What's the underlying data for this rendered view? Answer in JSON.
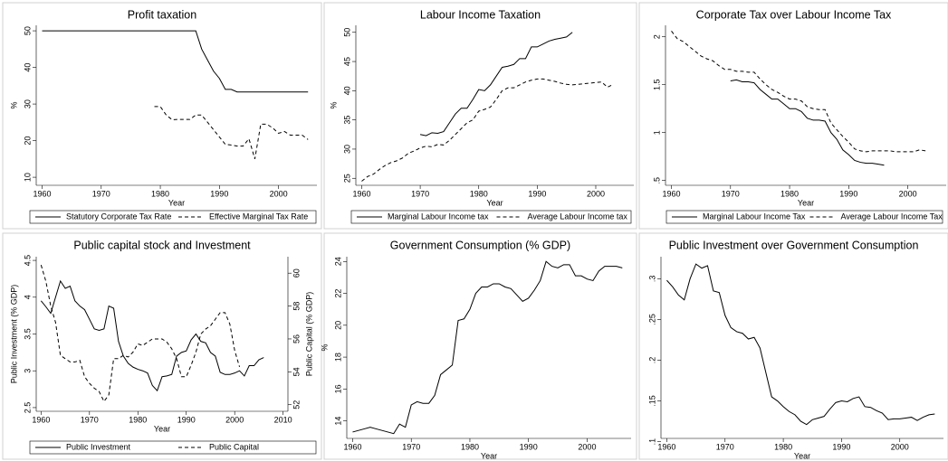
{
  "chart_data": [
    {
      "type": "line",
      "title": "Profit taxation",
      "xlabel": "Year",
      "ylabel": "%",
      "x": [
        1960,
        1961,
        1962,
        1963,
        1964,
        1965,
        1966,
        1967,
        1968,
        1969,
        1970,
        1971,
        1972,
        1973,
        1974,
        1975,
        1976,
        1977,
        1978,
        1979,
        1980,
        1981,
        1982,
        1983,
        1984,
        1985,
        1986,
        1987,
        1988,
        1989,
        1990,
        1991,
        1992,
        1993,
        1994,
        1995,
        1996,
        1997,
        1998,
        1999,
        2000,
        2001,
        2002,
        2003,
        2004,
        2005
      ],
      "series": [
        {
          "name": "Statutory Corporate Tax Rate",
          "color": "#000000",
          "line_style": "solid",
          "values": [
            50,
            50,
            50,
            50,
            50,
            50,
            50,
            50,
            50,
            50,
            50,
            50,
            50,
            50,
            50,
            50,
            50,
            50,
            50,
            50,
            50,
            50,
            50,
            50,
            50,
            50,
            50,
            45,
            42,
            39,
            37,
            34,
            34,
            33.3,
            33.3,
            33.3,
            33.3,
            33.3,
            33.3,
            33.3,
            33.3,
            33.3,
            33.3,
            33.3,
            33.3,
            33.3
          ]
        },
        {
          "name": "Effective Marginal Tax Rate",
          "color": "#000000",
          "line_style": "dashed",
          "values": [
            null,
            null,
            null,
            null,
            null,
            null,
            null,
            null,
            null,
            null,
            null,
            null,
            null,
            null,
            null,
            null,
            null,
            null,
            null,
            29.3,
            29.3,
            27,
            25.7,
            25.8,
            25.8,
            25.8,
            27,
            27,
            25,
            23,
            21,
            19,
            18.8,
            18.5,
            18.5,
            20.5,
            15,
            24.5,
            24.5,
            23.5,
            22,
            22.5,
            21.5,
            21.5,
            21.5,
            20.3
          ]
        }
      ],
      "xlim": [
        1959,
        2006.5
      ],
      "xticks": [
        1960,
        1970,
        1980,
        1990,
        2000
      ],
      "ylim": [
        7.8,
        51.5
      ],
      "yticks": [
        10,
        20,
        30,
        40,
        50
      ],
      "legend": "bottom"
    },
    {
      "type": "line",
      "title": "Labour Income Taxation",
      "xlabel": "Year",
      "ylabel": "%",
      "x": [
        1960,
        1961,
        1962,
        1963,
        1964,
        1965,
        1966,
        1967,
        1968,
        1969,
        1970,
        1971,
        1972,
        1973,
        1974,
        1975,
        1976,
        1977,
        1978,
        1979,
        1980,
        1981,
        1982,
        1983,
        1984,
        1985,
        1986,
        1987,
        1988,
        1989,
        1990,
        1991,
        1992,
        1993,
        1994,
        1995,
        1996,
        1997,
        1998,
        1999,
        2000,
        2001,
        2002,
        2003
      ],
      "series": [
        {
          "name": "Marginal Labour Income tax",
          "color": "#000000",
          "line_style": "solid",
          "values": [
            null,
            null,
            null,
            null,
            null,
            null,
            null,
            null,
            null,
            null,
            32.5,
            32.3,
            32.8,
            32.7,
            33,
            34.5,
            36,
            37,
            37,
            38.5,
            40.2,
            40,
            41,
            42.5,
            44,
            44.2,
            44.5,
            45.5,
            45.5,
            47.5,
            47.5,
            48,
            48.5,
            48.8,
            49,
            49.2,
            50,
            null,
            null,
            null,
            null,
            null,
            null,
            null
          ]
        },
        {
          "name": "Average Labour Income tax",
          "color": "#000000",
          "line_style": "dashed",
          "values": [
            24.5,
            25.3,
            25.7,
            26.5,
            27.2,
            27.7,
            28,
            28.5,
            29.3,
            29.7,
            30.2,
            30.5,
            30.4,
            30.8,
            30.7,
            31.5,
            32.5,
            33.5,
            34.5,
            35,
            36.5,
            36.8,
            37.2,
            38.5,
            40,
            40.5,
            40.5,
            41,
            41.5,
            41.8,
            42,
            42,
            41.8,
            41.6,
            41.3,
            41.1,
            41,
            41.1,
            41.2,
            41.3,
            41.4,
            41.5,
            40.6,
            41.1
          ]
        }
      ],
      "xlim": [
        1959,
        2006.5
      ],
      "xticks": [
        1960,
        1970,
        1980,
        1990,
        2000
      ],
      "ylim": [
        23.8,
        51.2
      ],
      "yticks": [
        25,
        30,
        35,
        40,
        45,
        50
      ],
      "legend": "bottom"
    },
    {
      "type": "line",
      "title": "Corporate Tax over Labour Income Tax",
      "xlabel": "Year",
      "x": [
        1960,
        1961,
        1962,
        1963,
        1964,
        1965,
        1966,
        1967,
        1968,
        1969,
        1970,
        1971,
        1972,
        1973,
        1974,
        1975,
        1976,
        1977,
        1978,
        1979,
        1980,
        1981,
        1982,
        1983,
        1984,
        1985,
        1986,
        1987,
        1988,
        1989,
        1990,
        1991,
        1992,
        1993,
        1994,
        1995,
        1996,
        1997,
        1998,
        1999,
        2000,
        2001,
        2002,
        2003
      ],
      "series": [
        {
          "name": "Marginal Labour Income Tax",
          "color": "#000000",
          "line_style": "solid",
          "values": [
            null,
            null,
            null,
            null,
            null,
            null,
            null,
            null,
            null,
            null,
            1.54,
            1.55,
            1.53,
            1.53,
            1.52,
            1.45,
            1.4,
            1.35,
            1.35,
            1.3,
            1.25,
            1.25,
            1.22,
            1.15,
            1.13,
            1.13,
            1.12,
            1.0,
            0.93,
            0.82,
            0.77,
            0.71,
            0.69,
            0.68,
            0.68,
            0.67,
            0.66,
            null,
            null,
            null,
            null,
            null,
            null,
            null
          ]
        },
        {
          "name": "Average Labour Income Tax",
          "color": "#000000",
          "line_style": "dashed",
          "values": [
            2.06,
            1.98,
            1.95,
            1.9,
            1.85,
            1.8,
            1.77,
            1.75,
            1.7,
            1.66,
            1.66,
            1.64,
            1.64,
            1.63,
            1.63,
            1.56,
            1.5,
            1.45,
            1.42,
            1.38,
            1.35,
            1.35,
            1.33,
            1.27,
            1.25,
            1.24,
            1.24,
            1.1,
            1.03,
            0.96,
            0.9,
            0.83,
            0.81,
            0.8,
            0.81,
            0.81,
            0.81,
            0.81,
            0.8,
            0.8,
            0.8,
            0.8,
            0.82,
            0.81
          ]
        }
      ],
      "xlim": [
        1959,
        2006.5
      ],
      "xticks": [
        1960,
        1970,
        1980,
        1990,
        2000
      ],
      "ylim": [
        0.45,
        2.12
      ],
      "yticks": [
        {
          "value": 0.5,
          "label": ".5"
        },
        1,
        1.5,
        2
      ],
      "legend": "bottom"
    },
    {
      "type": "line",
      "title": "Public capital stock and Investment",
      "xlabel": "Year",
      "ylabel": "Public Investment (% GDP)",
      "y2label": "Public Capital (% GDP)",
      "x": [
        1960,
        1961,
        1962,
        1963,
        1964,
        1965,
        1966,
        1967,
        1968,
        1969,
        1970,
        1971,
        1972,
        1973,
        1974,
        1975,
        1976,
        1977,
        1978,
        1979,
        1980,
        1981,
        1982,
        1983,
        1984,
        1985,
        1986,
        1987,
        1988,
        1989,
        1990,
        1991,
        1992,
        1993,
        1994,
        1995,
        1996,
        1997,
        1998,
        1999,
        2000,
        2001,
        2002,
        2003,
        2004,
        2005,
        2006
      ],
      "series": [
        {
          "name": "Public Investment",
          "color": "#000000",
          "line_style": "solid",
          "values": [
            3.95,
            3.87,
            3.78,
            4.0,
            4.22,
            4.12,
            4.15,
            3.95,
            3.88,
            3.83,
            3.7,
            3.57,
            3.55,
            3.57,
            3.88,
            3.85,
            3.4,
            3.2,
            3.1,
            3.05,
            3.02,
            3.0,
            2.97,
            2.8,
            2.73,
            2.92,
            2.93,
            2.95,
            3.2,
            3.25,
            3.27,
            3.42,
            3.5,
            3.4,
            3.38,
            3.25,
            3.2,
            2.98,
            2.95,
            2.95,
            2.97,
            3.0,
            2.93,
            3.07,
            3.07,
            3.15,
            3.18
          ]
        },
        {
          "name": "Public Capital",
          "color": "#000000",
          "line_style": "dashed",
          "axis": "y2",
          "values": [
            60.5,
            59.5,
            58,
            57,
            55,
            54.8,
            54.6,
            54.6,
            54.7,
            53.7,
            53.3,
            53,
            52.8,
            52.2,
            52.6,
            54.8,
            54.8,
            55,
            54.9,
            55.2,
            55.7,
            55.6,
            55.8,
            56,
            56,
            56,
            55.8,
            55.4,
            54.8,
            53.7,
            53.7,
            54.4,
            55.2,
            56.3,
            56.6,
            56.8,
            57.2,
            57.6,
            57.6,
            56.9,
            55.3,
            54.3,
            null,
            null,
            null,
            null,
            null
          ]
        }
      ],
      "xlim": [
        1959,
        2011
      ],
      "xticks": [
        1960,
        1970,
        1980,
        1990,
        2000,
        2010
      ],
      "ylim": [
        2.45,
        4.55
      ],
      "yticks": [
        2.5,
        3,
        3.5,
        4,
        4.5
      ],
      "y2lim": [
        51.6,
        61
      ],
      "y2ticks": [
        52,
        54,
        56,
        58,
        60
      ],
      "legend": "bottom"
    },
    {
      "type": "line",
      "title": "Government Consumption (% GDP)",
      "xlabel": "Year",
      "ylabel": "%",
      "x": [
        1960,
        1961,
        1962,
        1963,
        1964,
        1965,
        1966,
        1967,
        1968,
        1969,
        1970,
        1971,
        1972,
        1973,
        1974,
        1975,
        1976,
        1977,
        1978,
        1979,
        1980,
        1981,
        1982,
        1983,
        1984,
        1985,
        1986,
        1987,
        1988,
        1989,
        1990,
        1991,
        1992,
        1993,
        1994,
        1995,
        1996,
        1997,
        1998,
        1999,
        2000,
        2001,
        2002,
        2003,
        2004,
        2005,
        2006
      ],
      "series": [
        {
          "color": "#000000",
          "line_style": "solid",
          "values": [
            13.3,
            13.4,
            13.5,
            13.6,
            13.5,
            13.4,
            13.3,
            13.2,
            13.8,
            13.6,
            15.0,
            15.2,
            15.1,
            15.1,
            15.6,
            16.9,
            17.2,
            17.5,
            20.3,
            20.4,
            21.0,
            22.0,
            22.4,
            22.4,
            22.6,
            22.6,
            22.4,
            22.3,
            21.9,
            21.5,
            21.7,
            22.2,
            22.8,
            24.0,
            23.7,
            23.6,
            23.8,
            23.8,
            23.1,
            23.1,
            22.9,
            22.8,
            23.4,
            23.7,
            23.7,
            23.7,
            23.6
          ]
        }
      ],
      "xlim": [
        1959,
        2007.5
      ],
      "xticks": [
        1960,
        1970,
        1980,
        1990,
        2000
      ],
      "ylim": [
        12.9,
        24.3
      ],
      "yticks": [
        14,
        16,
        18,
        20,
        22,
        24
      ]
    },
    {
      "type": "line",
      "title": "Public Investment over Government Consumption",
      "xlabel": "Year",
      "x": [
        1960,
        1961,
        1962,
        1963,
        1964,
        1965,
        1966,
        1967,
        1968,
        1969,
        1970,
        1971,
        1972,
        1973,
        1974,
        1975,
        1976,
        1977,
        1978,
        1979,
        1980,
        1981,
        1982,
        1983,
        1984,
        1985,
        1986,
        1987,
        1988,
        1989,
        1990,
        1991,
        1992,
        1993,
        1994,
        1995,
        1996,
        1997,
        1998,
        1999,
        2000,
        2001,
        2002,
        2003,
        2004,
        2005,
        2006
      ],
      "series": [
        {
          "color": "#000000",
          "line_style": "solid",
          "values": [
            0.298,
            0.29,
            0.28,
            0.274,
            0.3,
            0.318,
            0.313,
            0.316,
            0.285,
            0.283,
            0.255,
            0.24,
            0.235,
            0.233,
            0.226,
            0.228,
            0.215,
            0.185,
            0.155,
            0.15,
            0.143,
            0.137,
            0.133,
            0.125,
            0.121,
            0.127,
            0.129,
            0.131,
            0.14,
            0.148,
            0.15,
            0.149,
            0.153,
            0.155,
            0.143,
            0.142,
            0.138,
            0.135,
            0.127,
            0.128,
            0.128,
            0.129,
            0.13,
            0.126,
            0.13,
            0.133,
            0.134
          ]
        }
      ],
      "xlim": [
        1959,
        2007.5
      ],
      "xticks": [
        1960,
        1970,
        1980,
        1990,
        2000
      ],
      "ylim": [
        0.104,
        0.327
      ],
      "yticks": [
        {
          "value": 0.1,
          "label": ".1"
        },
        {
          "value": 0.15,
          "label": ".15"
        },
        {
          "value": 0.2,
          "label": ".2"
        },
        {
          "value": 0.25,
          "label": ".25"
        },
        {
          "value": 0.3,
          "label": ".3"
        }
      ]
    }
  ]
}
